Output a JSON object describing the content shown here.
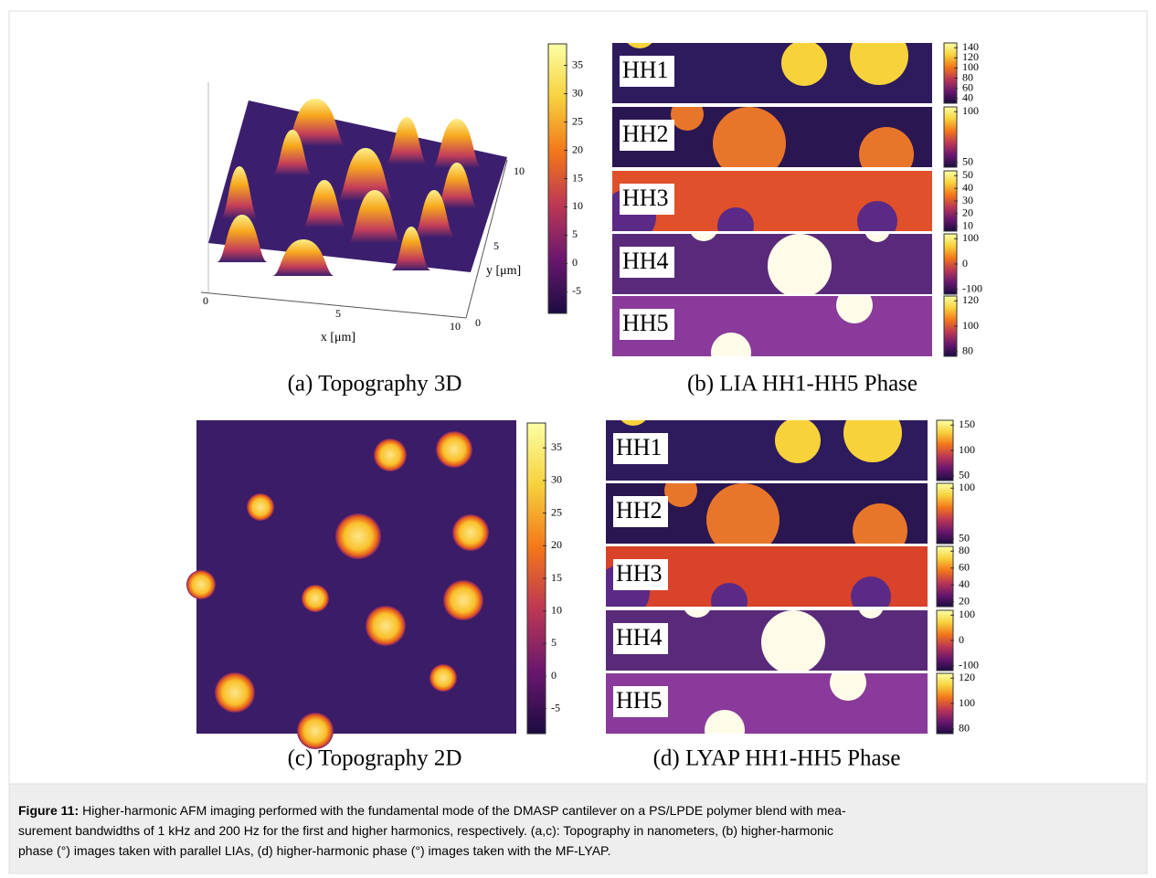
{
  "panels": {
    "a": {
      "caption": "(a) Topography 3D",
      "x_label": "x [μm]",
      "y_label": "y [μm]",
      "x_ticks": [
        "0",
        "5",
        "10"
      ],
      "y_ticks": [
        "0",
        "5",
        "10"
      ],
      "colorbar_ticks": [
        35,
        30,
        25,
        20,
        15,
        10,
        5,
        0,
        -5
      ]
    },
    "b": {
      "caption": "(b) LIA HH1-HH5 Phase",
      "strips": [
        {
          "label": "HH1",
          "colorbar_ticks": [
            140,
            120,
            100,
            80,
            60,
            40
          ]
        },
        {
          "label": "HH2",
          "colorbar_ticks": [
            100,
            50
          ]
        },
        {
          "label": "HH3",
          "colorbar_ticks": [
            50,
            40,
            30,
            20,
            10
          ]
        },
        {
          "label": "HH4",
          "colorbar_ticks": [
            100,
            0,
            -100
          ]
        },
        {
          "label": "HH5",
          "colorbar_ticks": [
            120,
            100,
            80
          ]
        }
      ]
    },
    "c": {
      "caption": "(c) Topography 2D",
      "colorbar_ticks": [
        35,
        30,
        25,
        20,
        15,
        10,
        5,
        0,
        -5
      ]
    },
    "d": {
      "caption": "(d) LYAP HH1-HH5 Phase",
      "strips": [
        {
          "label": "HH1",
          "colorbar_ticks": [
            150,
            100,
            50
          ]
        },
        {
          "label": "HH2",
          "colorbar_ticks": [
            100,
            50
          ]
        },
        {
          "label": "HH3",
          "colorbar_ticks": [
            80,
            60,
            40,
            20
          ]
        },
        {
          "label": "HH4",
          "colorbar_ticks": [
            100,
            0,
            -100
          ]
        },
        {
          "label": "HH5",
          "colorbar_ticks": [
            120,
            100,
            80
          ]
        }
      ]
    }
  },
  "caption": {
    "label": "Figure 11:",
    "lines": [
      "Higher-harmonic AFM imaging performed with the fundamental mode of the DMASP cantilever on a PS/LPDE polymer blend with mea-",
      "surement bandwidths of 1 kHz and 200 Hz for the first and higher harmonics, respectively. (a,c): Topography in nanometers, (b) higher-harmonic",
      "phase (°) images taken with parallel LIAs, (d) higher-harmonic phase (°) images taken with the MF-LYAP."
    ]
  }
}
